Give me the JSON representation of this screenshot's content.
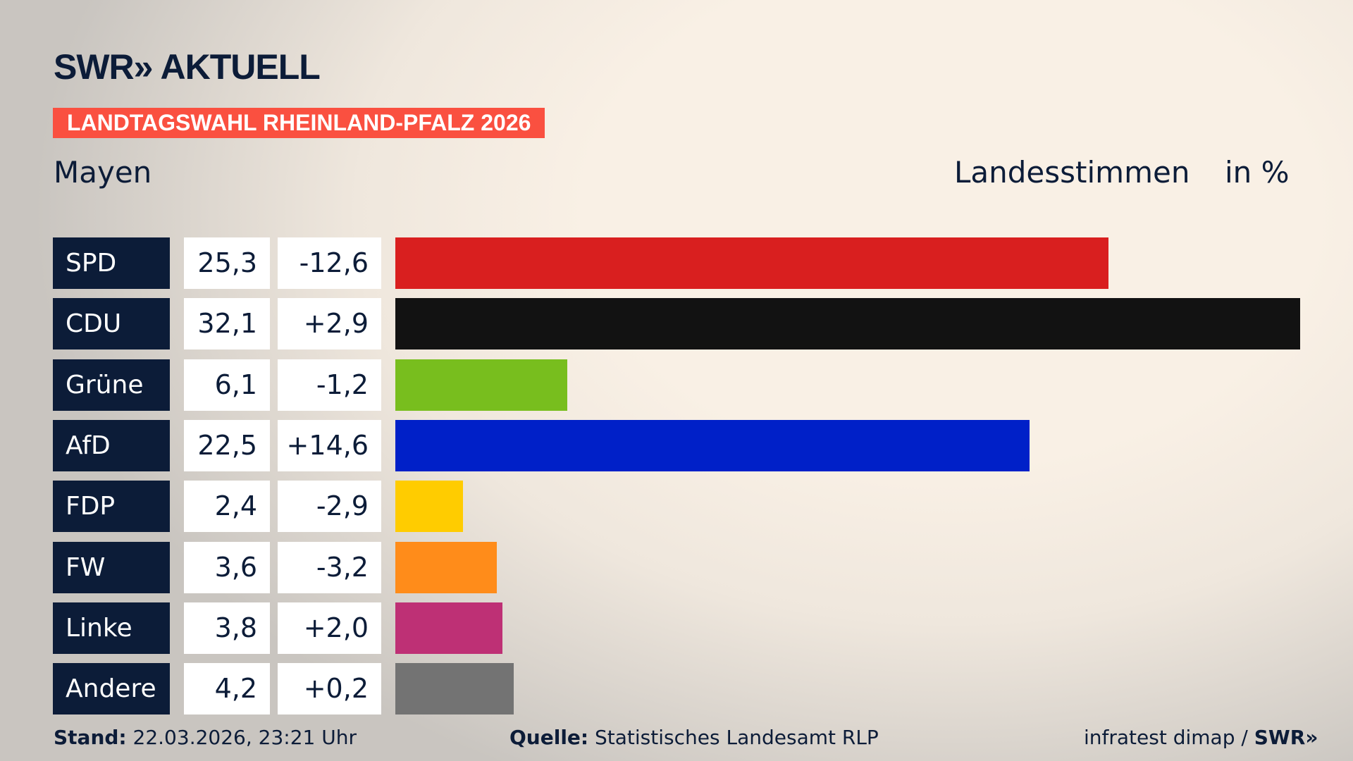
{
  "header": {
    "logo": "SWR» AKTUELL",
    "banner": "LANDTAGSWAHL RHEINLAND-PFALZ 2026",
    "region": "Mayen",
    "metric": "Landesstimmen",
    "unit": "in %"
  },
  "chart_data": {
    "type": "bar",
    "orientation": "horizontal",
    "categories": [
      "SPD",
      "CDU",
      "Grüne",
      "AfD",
      "FDP",
      "FW",
      "Linke",
      "Andere"
    ],
    "values": [
      25.3,
      32.1,
      6.1,
      22.5,
      2.4,
      3.6,
      3.8,
      4.2
    ],
    "value_labels": [
      "25,3",
      "32,1",
      "6,1",
      "22,5",
      "2,4",
      "3,6",
      "3,8",
      "4,2"
    ],
    "diff_labels": [
      "-12,6",
      "+2,9",
      "-1,2",
      "+14,6",
      "-2,9",
      "-3,2",
      "+2,0",
      "+0,2"
    ],
    "diffs": [
      -12.6,
      2.9,
      -1.2,
      14.6,
      -2.9,
      -3.2,
      2.0,
      0.2
    ],
    "colors": [
      "#d91f1f",
      "#121212",
      "#78be1e",
      "#0020c8",
      "#ffcc00",
      "#ff8c1a",
      "#be3075",
      "#737373"
    ],
    "title": "Landesstimmen",
    "ylabel": "in %",
    "grid": false
  },
  "footer": {
    "stand_label": "Stand:",
    "stand_value": "22.03.2026, 23:21 Uhr",
    "source_label": "Quelle:",
    "source_value": "Statistisches Landesamt RLP",
    "credit": "infratest dimap / ",
    "credit_logo": "SWR»"
  }
}
